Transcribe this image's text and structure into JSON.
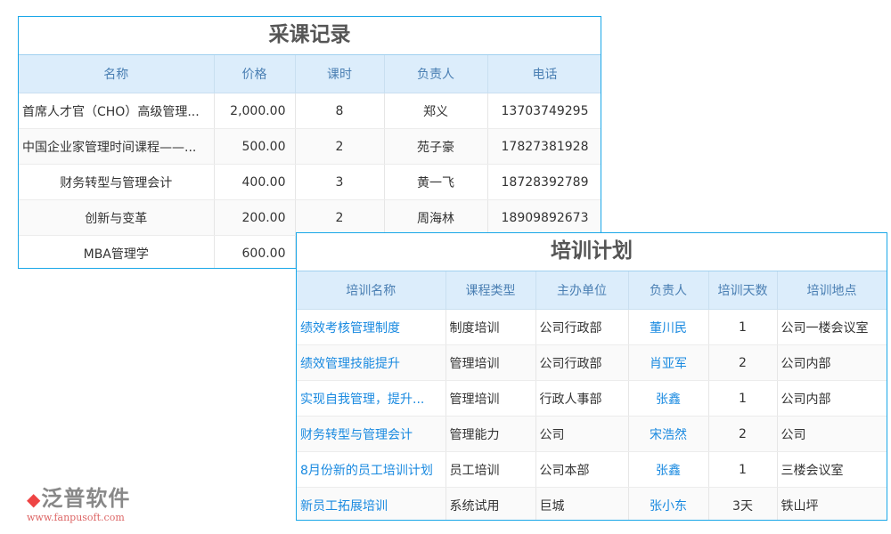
{
  "purchase": {
    "title": "采课记录",
    "headers": [
      "名称",
      "价格",
      "课时",
      "负责人",
      "电话"
    ],
    "rows": [
      [
        "首席人才官（CHO）高级管理...",
        "2,000.00",
        "8",
        "郑义",
        "13703749295"
      ],
      [
        "中国企业家管理时间课程——...",
        "500.00",
        "2",
        "苑子豪",
        "17827381928"
      ],
      [
        "财务转型与管理会计",
        "400.00",
        "3",
        "黄一飞",
        "18728392789"
      ],
      [
        "创新与变革",
        "200.00",
        "2",
        "周海林",
        "18909892673"
      ],
      [
        "MBA管理学",
        "600.00",
        "",
        "",
        ""
      ]
    ]
  },
  "plan": {
    "title": "培训计划",
    "headers": [
      "培训名称",
      "课程类型",
      "主办单位",
      "负责人",
      "培训天数",
      "培训地点"
    ],
    "rows": [
      [
        "绩效考核管理制度",
        "制度培训",
        "公司行政部",
        "董川民",
        "1",
        "公司一楼会议室"
      ],
      [
        "绩效管理技能提升",
        "管理培训",
        "公司行政部",
        "肖亚军",
        "2",
        "公司内部"
      ],
      [
        "实现自我管理，提升...",
        "管理培训",
        "行政人事部",
        "张鑫",
        "1",
        "公司内部"
      ],
      [
        "财务转型与管理会计",
        "管理能力",
        "公司",
        "宋浩然",
        "2",
        "公司"
      ],
      [
        "8月份新的员工培训计划",
        "员工培训",
        "公司本部",
        "张鑫",
        "1",
        "三楼会议室"
      ],
      [
        "新员工拓展培训",
        "系统试用",
        "巨城",
        "张小东",
        "3天",
        "铁山坪"
      ]
    ]
  },
  "watermark": {
    "logo": "泛普软件",
    "url": "www.fanpusoft.com"
  },
  "colors": {
    "border": "#1aa7e8",
    "header_bg": "#dcedfb",
    "link": "#1a8ae0"
  }
}
